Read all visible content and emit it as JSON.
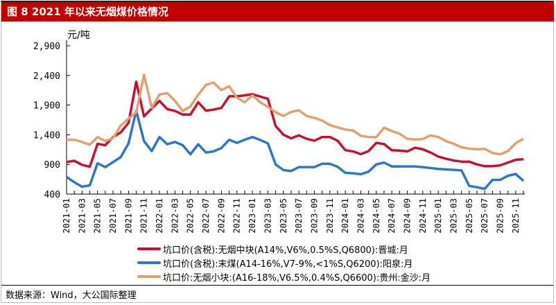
{
  "title": "图 8    2021 年以来无烟煤价格情况",
  "source": "数据来源：Wind，大公国际整理",
  "chart_data": {
    "type": "line",
    "title": "2021 年以来无烟煤价格情况",
    "ylabel": "元/吨",
    "xlabel": "",
    "ylim": [
      400,
      2900
    ],
    "yticks": [
      400,
      900,
      1400,
      1900,
      2400,
      2900
    ],
    "ytick_labels": [
      "400",
      "900",
      "1,400",
      "1,900",
      "2,400",
      "2,900"
    ],
    "grid": false,
    "legend_position": "bottom",
    "x": [
      "2021-01",
      "2021-02",
      "2021-03",
      "2021-04",
      "2021-05",
      "2021-06",
      "2021-07",
      "2021-08",
      "2021-09",
      "2021-10",
      "2021-11",
      "2021-12",
      "2022-01",
      "2022-02",
      "2022-03",
      "2022-04",
      "2022-05",
      "2022-06",
      "2022-07",
      "2022-08",
      "2022-09",
      "2022-10",
      "2022-11",
      "2022-12",
      "2023-01",
      "2023-02",
      "2023-03",
      "2023-04",
      "2023-05",
      "2023-06",
      "2023-07",
      "2023-08",
      "2023-09",
      "2023-10",
      "2023-11",
      "2023-12",
      "2024-01",
      "2024-02",
      "2024-03",
      "2024-04",
      "2024-05",
      "2024-06",
      "2024-07",
      "2024-08",
      "2024-09",
      "2024-10",
      "2024-11",
      "2024-12",
      "2025-01",
      "2025-02",
      "2025-03",
      "2025-04",
      "2025-05",
      "2025-06",
      "2025-07",
      "2025-08",
      "2025-09",
      "2025-10",
      "2025-11",
      "2025-12"
    ],
    "xtick_labels": [
      "2021-01",
      "2021-03",
      "2021-05",
      "2021-07",
      "2021-09",
      "2021-11",
      "2022-01",
      "2022-03",
      "2022-05",
      "2022-07",
      "2022-09",
      "2022-11",
      "2023-01",
      "2023-03",
      "2023-05",
      "2023-07",
      "2023-09",
      "2023-11",
      "2024-01",
      "2024-03",
      "2024-05",
      "2024-07",
      "2024-09",
      "2024-11",
      "2025-01",
      "2025-03",
      "2025-05",
      "2025-07",
      "2025-09",
      "2025-11"
    ],
    "series": [
      {
        "name": "坑口价(含税):无烟中块(A14%,V6%,0.5%S,Q6800):晋城:月",
        "color": "#C8102E",
        "values": [
          940,
          962,
          893,
          862,
          1247,
          1224,
          1362,
          1440,
          1601,
          2294,
          1709,
          1844,
          1971,
          1832,
          1801,
          1740,
          1740,
          1948,
          1805,
          1824,
          1852,
          2048,
          2048,
          2063,
          2083,
          2044,
          2005,
          1547,
          1401,
          1339,
          1390,
          1332,
          1301,
          1362,
          1362,
          1301,
          1139,
          1120,
          1073,
          1124,
          1263,
          1243,
          1139,
          1132,
          1120,
          1182,
          1155,
          1101,
          1032,
          997,
          966,
          947,
          947,
          900,
          870,
          870,
          885,
          931,
          978,
          986
        ]
      },
      {
        "name": "坑口价(含税):末煤(A14-16%,V7-9%,<1%S,Q6200):阳泉:月",
        "color": "#2E75CF",
        "values": [
          689,
          600,
          524,
          547,
          920,
          854,
          939,
          1024,
          1255,
          1805,
          1293,
          1124,
          1362,
          1240,
          1278,
          1224,
          1070,
          1240,
          1101,
          1120,
          1177,
          1316,
          1263,
          1316,
          1362,
          1312,
          1255,
          900,
          804,
          789,
          854,
          854,
          854,
          912,
          912,
          862,
          758,
          750,
          735,
          777,
          900,
          931,
          866,
          866,
          866,
          866,
          854,
          839,
          824,
          816,
          808,
          800,
          539,
          516,
          489,
          639,
          639,
          708,
          739,
          623
        ]
      },
      {
        "name": "坑口价:无烟小块:(A16-18%,V6.5%,0.4%S,Q6600):贵州:金沙:月",
        "color": "#E0A070",
        "values": [
          1316,
          1316,
          1278,
          1232,
          1362,
          1293,
          1343,
          1555,
          1671,
          1778,
          2410,
          1855,
          2078,
          2101,
          1971,
          1801,
          1878,
          2075,
          2240,
          2279,
          2152,
          2217,
          2025,
          1948,
          2063,
          1948,
          1870,
          1778,
          1717,
          1786,
          1812,
          1717,
          1686,
          1640,
          1563,
          1524,
          1489,
          1471,
          1382,
          1362,
          1359,
          1520,
          1463,
          1416,
          1332,
          1320,
          1328,
          1390,
          1362,
          1293,
          1247,
          1189,
          1166,
          1155,
          1162,
          1093,
          1070,
          1124,
          1259,
          1332
        ]
      }
    ]
  }
}
